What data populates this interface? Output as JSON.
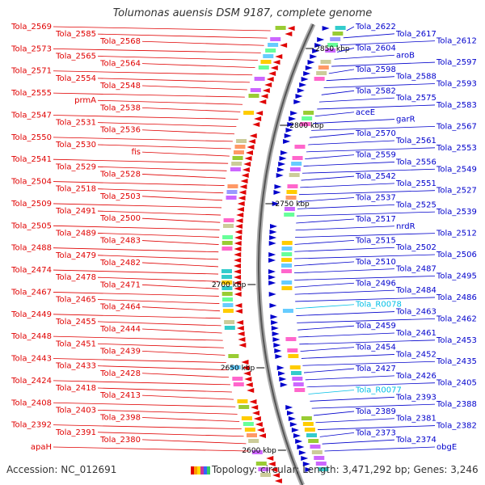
{
  "header": {
    "title": "Tolumonas auensis DSM 9187, complete genome"
  },
  "footer": {
    "accession": "Accession: NC_012691",
    "topology": "Topology: circular; Length: 3,471,292 bp; Genes: 3,246"
  },
  "colors": {
    "forward": "#e00000",
    "reverse": "#0000cc",
    "rna": "#00bfe6"
  },
  "map": {
    "ticks": [
      {
        "label": "2850 kbp",
        "side": "right"
      },
      {
        "label": "2800 kbp",
        "side": "right"
      },
      {
        "label": "2750 kbp",
        "side": "right"
      },
      {
        "label": "2700 kbp",
        "side": "left"
      },
      {
        "label": "2650 kbp",
        "side": "left"
      },
      {
        "label": "2600 kbp",
        "side": "left"
      }
    ],
    "left_labels": [
      "Tola_2569",
      "Tola_2585",
      "Tola_2568",
      "Tola_2573",
      "Tola_2565",
      "Tola_2564",
      "Tola_2571",
      "Tola_2554",
      "Tola_2548",
      "Tola_2555",
      "prmA",
      "Tola_2538",
      "Tola_2547",
      "Tola_2531",
      "Tola_2536",
      "Tola_2550",
      "Tola_2530",
      "fis",
      "Tola_2541",
      "Tola_2529",
      "Tola_2528",
      "Tola_2504",
      "Tola_2518",
      "Tola_2503",
      "Tola_2509",
      "Tola_2491",
      "Tola_2500",
      "Tola_2505",
      "Tola_2489",
      "Tola_2483",
      "Tola_2488",
      "Tola_2479",
      "Tola_2482",
      "Tola_2474",
      "Tola_2478",
      "Tola_2471",
      "Tola_2467",
      "Tola_2465",
      "Tola_2464",
      "Tola_2449",
      "Tola_2455",
      "Tola_2444",
      "Tola_2448",
      "Tola_2451",
      "Tola_2439",
      "Tola_2443",
      "Tola_2433",
      "Tola_2428",
      "Tola_2424",
      "Tola_2418",
      "Tola_2413",
      "Tola_2408",
      "Tola_2403",
      "Tola_2398",
      "Tola_2392",
      "Tola_2391",
      "Tola_2380",
      "apaH"
    ],
    "right_labels": [
      "Tola_2622",
      "Tola_2617",
      "Tola_2612",
      "Tola_2604",
      "aroB",
      "Tola_2597",
      "Tola_2598",
      "Tola_2588",
      "Tola_2593",
      "Tola_2582",
      "Tola_2575",
      "Tola_2583",
      "aceE",
      "garR",
      "Tola_2567",
      "Tola_2570",
      "Tola_2561",
      "Tola_2553",
      "Tola_2559",
      "Tola_2556",
      "Tola_2549",
      "Tola_2542",
      "Tola_2551",
      "Tola_2527",
      "Tola_2537",
      "Tola_2525",
      "Tola_2539",
      "Tola_2517",
      "nrdR",
      "Tola_2512",
      "Tola_2515",
      "Tola_2502",
      "Tola_2506",
      "Tola_2510",
      "Tola_2487",
      "Tola_2495",
      "Tola_2496",
      "Tola_2484",
      "Tola_2486",
      "Tola_R0078",
      "Tola_2463",
      "Tola_2462",
      "Tola_2459",
      "Tola_2461",
      "Tola_2453",
      "Tola_2454",
      "Tola_2452",
      "Tola_2435",
      "Tola_2427",
      "Tola_2426",
      "Tola_2405",
      "Tola_R0077",
      "Tola_2393",
      "Tola_2388",
      "Tola_2389",
      "Tola_2381",
      "Tola_2382",
      "Tola_2373",
      "Tola_2374",
      "obgE"
    ]
  }
}
